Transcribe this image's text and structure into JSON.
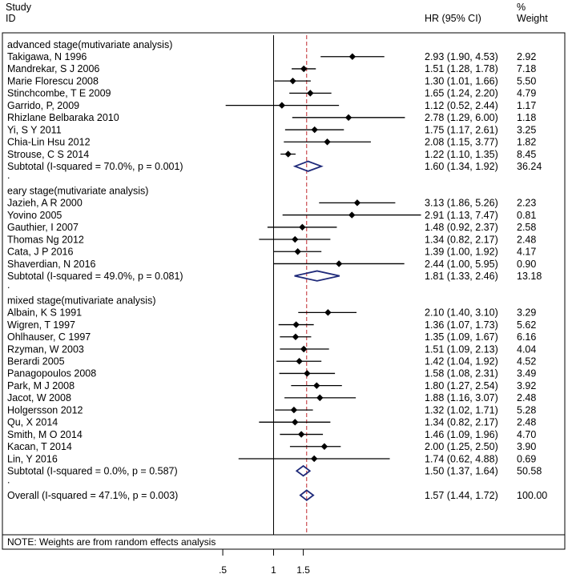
{
  "chart_data": {
    "type": "forest",
    "header": {
      "study": "Study",
      "id": "ID",
      "hr": "HR (95% CI)",
      "pct": "%",
      "weight": "Weight"
    },
    "xticks": [
      {
        "value": 0.5,
        "label": ".5"
      },
      {
        "value": 1,
        "label": "1"
      },
      {
        "value": 1.5,
        "label": "1.5"
      }
    ],
    "null_line": 1,
    "overall_line": 1.57,
    "rows": [
      {
        "kind": "group",
        "label": "advanced stage(mutivariate analysis)"
      },
      {
        "kind": "study",
        "label": "Takigawa, N 1996",
        "hr": 2.93,
        "lo": 1.9,
        "hi": 4.53,
        "ci_text": "2.93 (1.90, 4.53)",
        "weight": "2.92"
      },
      {
        "kind": "study",
        "label": "Mandrekar, S J 2006",
        "hr": 1.51,
        "lo": 1.28,
        "hi": 1.78,
        "ci_text": "1.51 (1.28, 1.78)",
        "weight": "7.18"
      },
      {
        "kind": "study",
        "label": "Marie Florescu 2008",
        "hr": 1.3,
        "lo": 1.01,
        "hi": 1.66,
        "ci_text": "1.30 (1.01, 1.66)",
        "weight": "5.50"
      },
      {
        "kind": "study",
        "label": "Stinchcombe, T E 2009",
        "hr": 1.65,
        "lo": 1.24,
        "hi": 2.2,
        "ci_text": "1.65 (1.24, 2.20)",
        "weight": "4.79"
      },
      {
        "kind": "study",
        "label": "Garrido, P,  2009",
        "hr": 1.12,
        "lo": 0.52,
        "hi": 2.44,
        "ci_text": "1.12 (0.52, 2.44)",
        "weight": "1.17"
      },
      {
        "kind": "study",
        "label": "Rhizlane Belbaraka 2010",
        "hr": 2.78,
        "lo": 1.29,
        "hi": 6.0,
        "ci_text": "2.78 (1.29, 6.00)",
        "weight": "1.18"
      },
      {
        "kind": "study",
        "label": "Yi, S Y 2011",
        "hr": 1.75,
        "lo": 1.17,
        "hi": 2.61,
        "ci_text": "1.75 (1.17, 2.61)",
        "weight": "3.25"
      },
      {
        "kind": "study",
        "label": "Chia-Lin Hsu 2012",
        "hr": 2.08,
        "lo": 1.15,
        "hi": 3.77,
        "ci_text": "2.08 (1.15, 3.77)",
        "weight": "1.82"
      },
      {
        "kind": "study",
        "label": "Strouse, C S 2014",
        "hr": 1.22,
        "lo": 1.1,
        "hi": 1.35,
        "ci_text": "1.22 (1.10, 1.35)",
        "weight": "8.45"
      },
      {
        "kind": "subtotal",
        "label": "Subtotal  (I-squared = 70.0%, p = 0.001)",
        "hr": 1.6,
        "lo": 1.34,
        "hi": 1.92,
        "ci_text": "1.60 (1.34, 1.92)",
        "weight": "36.24"
      },
      {
        "kind": "dot",
        "label": "."
      },
      {
        "kind": "group",
        "label": "eary stage(mutivariate analysis)"
      },
      {
        "kind": "study",
        "label": "Jazieh, A R 2000",
        "hr": 3.13,
        "lo": 1.86,
        "hi": 5.26,
        "ci_text": "3.13 (1.86, 5.26)",
        "weight": "2.23"
      },
      {
        "kind": "study",
        "label": "Yovino 2005",
        "hr": 2.91,
        "lo": 1.13,
        "hi": 7.47,
        "ci_text": "2.91 (1.13, 7.47)",
        "weight": "0.81"
      },
      {
        "kind": "study",
        "label": "Gauthier, I 2007",
        "hr": 1.48,
        "lo": 0.92,
        "hi": 2.37,
        "ci_text": "1.48 (0.92, 2.37)",
        "weight": "2.58"
      },
      {
        "kind": "study",
        "label": "Thomas Ng 2012",
        "hr": 1.34,
        "lo": 0.82,
        "hi": 2.17,
        "ci_text": "1.34 (0.82, 2.17)",
        "weight": "2.48"
      },
      {
        "kind": "study",
        "label": "Cata, J P 2016",
        "hr": 1.39,
        "lo": 1.0,
        "hi": 1.92,
        "ci_text": "1.39 (1.00, 1.92)",
        "weight": "4.17"
      },
      {
        "kind": "study",
        "label": "Shaverdian, N 2016",
        "hr": 2.44,
        "lo": 1.0,
        "hi": 5.95,
        "ci_text": "2.44 (1.00, 5.95)",
        "weight": "0.90"
      },
      {
        "kind": "subtotal",
        "label": "Subtotal  (I-squared = 49.0%, p = 0.081)",
        "hr": 1.81,
        "lo": 1.33,
        "hi": 2.46,
        "ci_text": "1.81 (1.33, 2.46)",
        "weight": "13.18"
      },
      {
        "kind": "dot",
        "label": "."
      },
      {
        "kind": "group",
        "label": "mixed stage(mutivariate analysis)"
      },
      {
        "kind": "study",
        "label": "Albain, K S 1991",
        "hr": 2.1,
        "lo": 1.4,
        "hi": 3.1,
        "ci_text": "2.10 (1.40, 3.10)",
        "weight": "3.29"
      },
      {
        "kind": "study",
        "label": "Wigren, T 1997",
        "hr": 1.36,
        "lo": 1.07,
        "hi": 1.73,
        "ci_text": "1.36 (1.07, 1.73)",
        "weight": "5.62"
      },
      {
        "kind": "study",
        "label": "Ohlhauser, C 1997",
        "hr": 1.35,
        "lo": 1.09,
        "hi": 1.67,
        "ci_text": "1.35 (1.09, 1.67)",
        "weight": "6.16"
      },
      {
        "kind": "study",
        "label": "Rzyman, W 2003",
        "hr": 1.51,
        "lo": 1.09,
        "hi": 2.13,
        "ci_text": "1.51 (1.09, 2.13)",
        "weight": "4.04"
      },
      {
        "kind": "study",
        "label": "Berardi 2005",
        "hr": 1.42,
        "lo": 1.04,
        "hi": 1.92,
        "ci_text": "1.42 (1.04, 1.92)",
        "weight": "4.52"
      },
      {
        "kind": "study",
        "label": "Panagopoulos 2008",
        "hr": 1.58,
        "lo": 1.08,
        "hi": 2.31,
        "ci_text": "1.58 (1.08, 2.31)",
        "weight": "3.49"
      },
      {
        "kind": "study",
        "label": "Park, M J 2008",
        "hr": 1.8,
        "lo": 1.27,
        "hi": 2.54,
        "ci_text": "1.80 (1.27, 2.54)",
        "weight": "3.92"
      },
      {
        "kind": "study",
        "label": "Jacot, W 2008",
        "hr": 1.88,
        "lo": 1.16,
        "hi": 3.07,
        "ci_text": "1.88 (1.16, 3.07)",
        "weight": "2.48"
      },
      {
        "kind": "study",
        "label": "Holgersson 2012",
        "hr": 1.32,
        "lo": 1.02,
        "hi": 1.71,
        "ci_text": "1.32 (1.02, 1.71)",
        "weight": "5.28"
      },
      {
        "kind": "study",
        "label": "Qu, X 2014",
        "hr": 1.34,
        "lo": 0.82,
        "hi": 2.17,
        "ci_text": "1.34 (0.82, 2.17)",
        "weight": "2.48"
      },
      {
        "kind": "study",
        "label": "Smith, M O 2014",
        "hr": 1.46,
        "lo": 1.09,
        "hi": 1.96,
        "ci_text": "1.46 (1.09, 1.96)",
        "weight": "4.70"
      },
      {
        "kind": "study",
        "label": "Kacan, T 2014",
        "hr": 2.0,
        "lo": 1.25,
        "hi": 2.5,
        "ci_text": "2.00 (1.25, 2.50)",
        "weight": "3.90"
      },
      {
        "kind": "study",
        "label": "Lin, Y 2016",
        "hr": 1.74,
        "lo": 0.62,
        "hi": 4.88,
        "ci_text": "1.74 (0.62, 4.88)",
        "weight": "0.69"
      },
      {
        "kind": "subtotal",
        "label": "Subtotal  (I-squared = 0.0%, p = 0.587)",
        "hr": 1.5,
        "lo": 1.37,
        "hi": 1.64,
        "ci_text": "1.50 (1.37, 1.64)",
        "weight": "50.58"
      },
      {
        "kind": "dot",
        "label": "."
      },
      {
        "kind": "overall",
        "label": "Overall  (I-squared = 47.1%, p = 0.003)",
        "hr": 1.57,
        "lo": 1.44,
        "hi": 1.72,
        "ci_text": "1.57 (1.44, 1.72)",
        "weight": "100.00"
      }
    ],
    "note": "NOTE: Weights are from random effects analysis",
    "colors": {
      "diamond": "#1f2a7a",
      "overall_line": "#c0282d",
      "marker": "#000000"
    }
  }
}
